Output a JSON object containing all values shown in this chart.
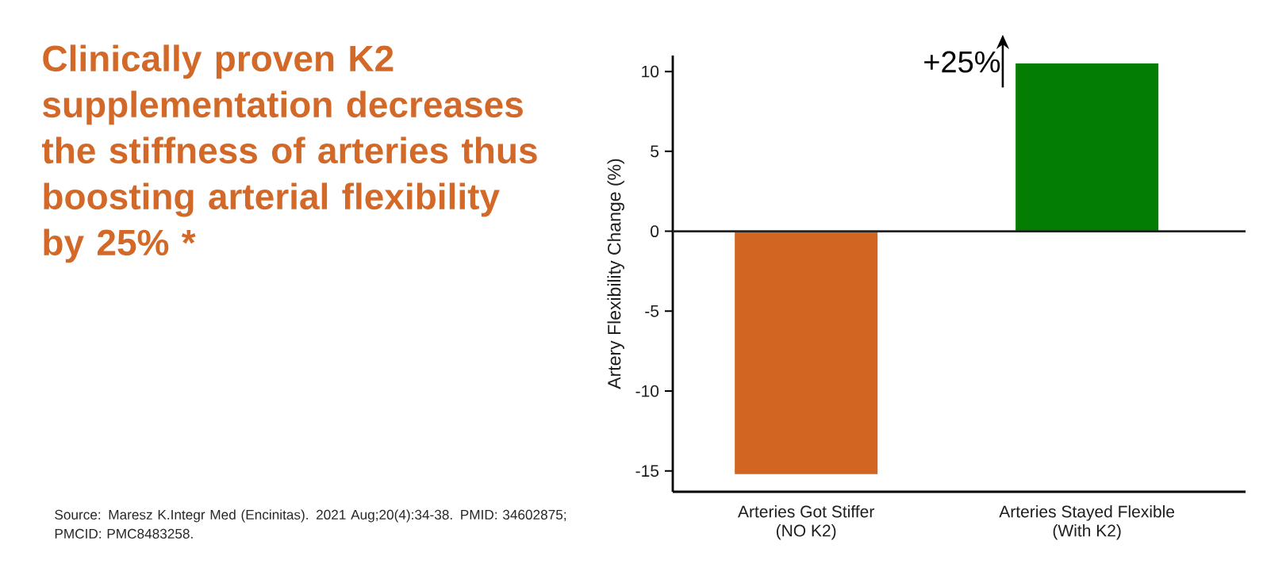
{
  "chart_data": {
    "type": "bar",
    "title": "Clinically proven K2 supplementation decreases the stiffness of arteries thus boosting arterial flexibility by 25% *",
    "ylabel": "Artery Flexibility Change (%)",
    "categories": [
      "Arteries Got Stiffer\n(NO K2)",
      "Arteries Stayed Flexible\n(With K2)"
    ],
    "values": [
      -15.2,
      10.5
    ],
    "colors": [
      "#d16521",
      "#037e03"
    ],
    "ylim": [
      -16.3,
      11
    ],
    "yticks": [
      -15,
      -10,
      -5,
      0,
      5,
      10
    ],
    "ref_lines": [
      {
        "axis": "y",
        "value": 0,
        "color": "#222222"
      }
    ],
    "grid": false,
    "annotations": [
      {
        "text": "+25%",
        "x": "Arteries Stayed Flexible\n(With K2)",
        "y": 10.5
      },
      "Source: Maresz K.Integr Med (Encinitas). 2021 Aug;20(4):34-38. PMID: 34602875; PMCID: PMC8483258."
    ]
  }
}
